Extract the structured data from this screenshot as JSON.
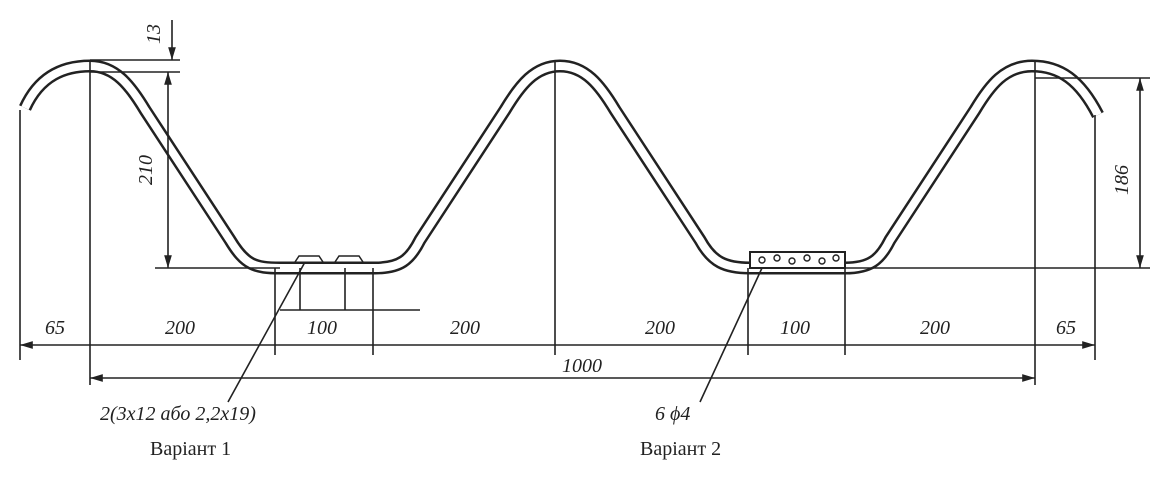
{
  "dimensions": {
    "crest_offset": "13",
    "depth": "210",
    "height": "186",
    "widths": [
      "65",
      "200",
      "100",
      "200",
      "200",
      "100",
      "200",
      "65"
    ],
    "total": "1000"
  },
  "callouts": [
    {
      "spec": "2(3x12 або 2,2x19)",
      "variant": "Варіант 1"
    },
    {
      "spec": "6 ϕ4",
      "variant": "Варіант 2"
    }
  ]
}
